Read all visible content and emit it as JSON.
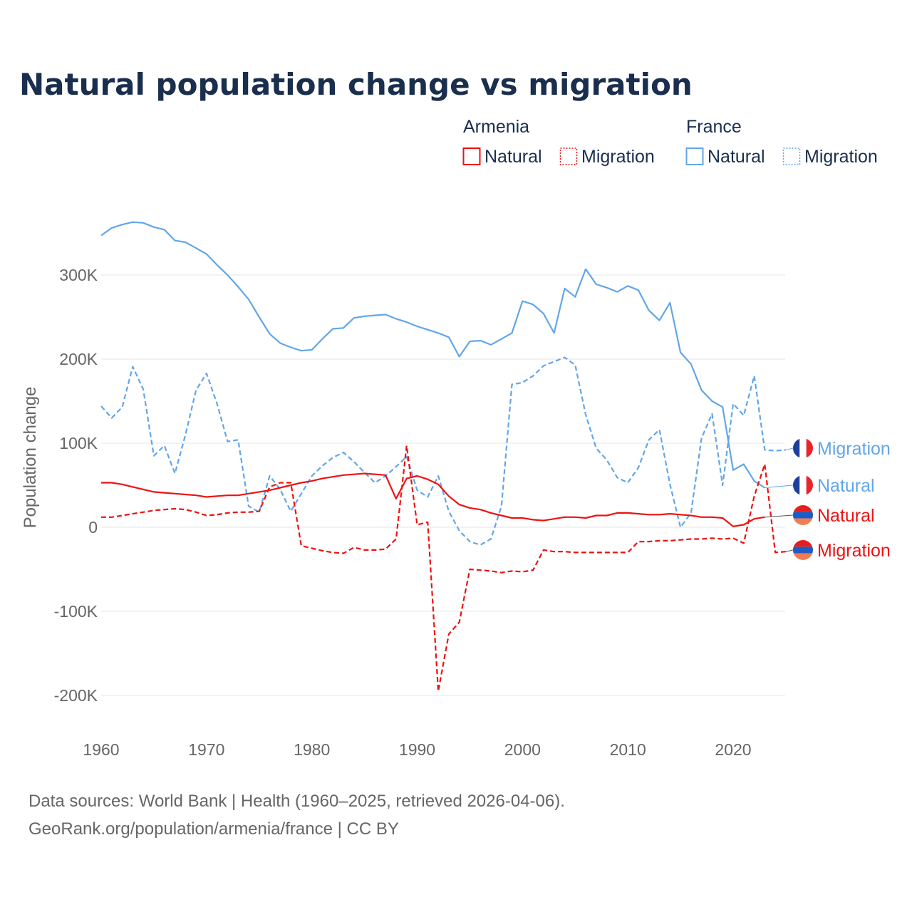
{
  "chart_data": {
    "type": "line",
    "title": "Natural population change vs migration",
    "xlabel": "",
    "ylabel": "Population change",
    "xlim": [
      1960,
      2025
    ],
    "ylim": [
      -200000,
      360000
    ],
    "x_ticks": [
      "1960",
      "1970",
      "1980",
      "1990",
      "2000",
      "2010",
      "2020"
    ],
    "y_ticks": [
      {
        "value": -200000,
        "label": "-200K"
      },
      {
        "value": -100000,
        "label": "-100K"
      },
      {
        "value": 0,
        "label": "0"
      },
      {
        "value": 100000,
        "label": "100K"
      },
      {
        "value": 200000,
        "label": "200K"
      },
      {
        "value": 300000,
        "label": "300K"
      }
    ],
    "grid": true,
    "legend": {
      "placement": "top-right",
      "groups": [
        {
          "country": "Armenia",
          "items": [
            "Natural",
            "Migration"
          ]
        },
        {
          "country": "France",
          "items": [
            "Natural",
            "Migration"
          ]
        }
      ]
    },
    "colors": {
      "Armenia": "#ee1111",
      "France": "#62a6e8"
    },
    "series": [
      {
        "name": "France Natural",
        "country": "France",
        "kind": "Natural",
        "dashed": false,
        "start": 1960,
        "end_label": "Natural",
        "values": [
          347,
          356,
          360,
          363,
          362,
          357,
          354,
          341,
          339,
          332,
          325,
          312,
          300,
          286,
          271,
          250,
          230,
          219,
          214,
          210,
          211,
          224,
          236,
          237,
          249,
          251,
          252,
          253,
          248,
          244,
          239,
          235,
          231,
          226,
          203,
          221,
          222,
          217,
          224,
          231,
          269,
          265,
          254,
          231,
          284,
          274,
          307,
          289,
          285,
          280,
          287,
          282,
          258,
          246,
          267,
          208,
          194,
          163,
          150,
          143,
          68,
          75,
          55,
          47
        ]
      },
      {
        "name": "France Migration",
        "country": "France",
        "kind": "Migration",
        "dashed": true,
        "start": 1960,
        "end_label": "Migration",
        "values": [
          144,
          130,
          143,
          191,
          164,
          85,
          97,
          64,
          110,
          163,
          183,
          147,
          102,
          104,
          25,
          18,
          61,
          45,
          19,
          40,
          61,
          73,
          83,
          89,
          78,
          65,
          53,
          61,
          72,
          84,
          44,
          36,
          61,
          19,
          -4,
          -17,
          -21,
          -14,
          25,
          170,
          172,
          180,
          192,
          197,
          202,
          193,
          134,
          94,
          80,
          59,
          53,
          71,
          104,
          116,
          51,
          0,
          17,
          106,
          135,
          50,
          147,
          133,
          180,
          92,
          91,
          92
        ]
      },
      {
        "name": "Armenia Natural",
        "country": "Armenia",
        "kind": "Natural",
        "dashed": false,
        "start": 1960,
        "end_label": "Natural",
        "values": [
          53,
          53,
          51,
          48,
          45,
          42,
          41,
          40,
          39,
          38,
          36,
          37,
          38,
          38,
          40,
          42,
          44,
          47,
          50,
          53,
          55,
          58,
          60,
          62,
          63,
          64,
          63,
          62,
          34,
          58,
          61,
          57,
          51,
          37,
          27,
          23,
          21,
          17,
          14,
          11,
          11,
          9,
          8,
          10,
          12,
          12,
          11,
          14,
          14,
          17,
          17,
          16,
          15,
          15,
          16,
          15,
          14,
          12,
          12,
          11,
          1,
          3,
          10,
          12
        ]
      },
      {
        "name": "Armenia Migration",
        "country": "Armenia",
        "kind": "Migration",
        "dashed": true,
        "start": 1960,
        "end_label": "Migration",
        "values": [
          12,
          12,
          14,
          16,
          18,
          20,
          21,
          22,
          21,
          18,
          14,
          15,
          17,
          18,
          18,
          19,
          48,
          53,
          53,
          -22,
          -25,
          -28,
          -30,
          -31,
          -24,
          -27,
          -27,
          -26,
          -14,
          97,
          3,
          6,
          -195,
          -127,
          -113,
          -50,
          -51,
          -52,
          -54,
          -52,
          -53,
          -51,
          -27,
          -29,
          -29,
          -30,
          -30,
          -30,
          -30,
          -30,
          -30,
          -17,
          -17,
          -16,
          -16,
          -15,
          -14,
          -14,
          -13,
          -14,
          -13,
          -19,
          37,
          75,
          -30,
          -29
        ]
      }
    ],
    "value_units": "thousands"
  },
  "source": {
    "line1": "Data sources: World Bank | Health (1960–2025, retrieved 2026-04-06).",
    "line2": "GeoRank.org/population/armenia/france | CC BY"
  }
}
